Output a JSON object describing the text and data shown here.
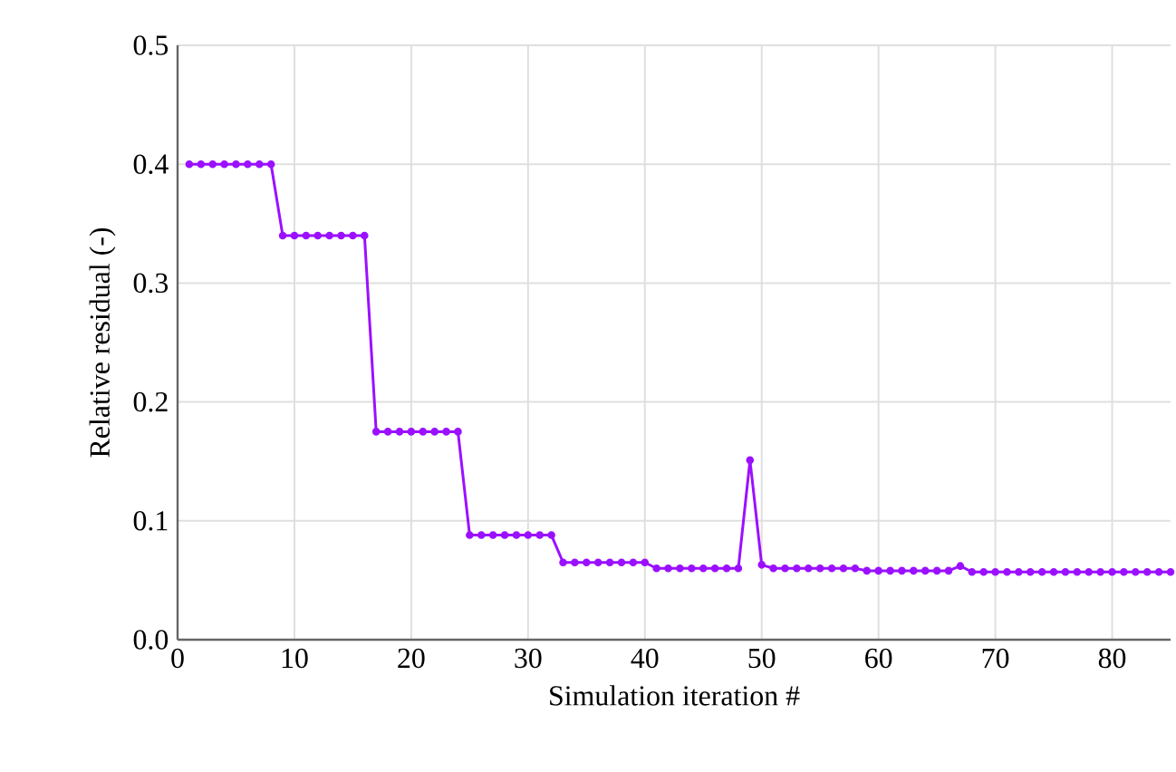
{
  "chart_data": {
    "type": "line",
    "xlabel": "Simulation iteration #",
    "ylabel": "Relative residual (-)",
    "x": [
      1,
      2,
      3,
      4,
      5,
      6,
      7,
      8,
      9,
      10,
      11,
      12,
      13,
      14,
      15,
      16,
      17,
      18,
      19,
      20,
      21,
      22,
      23,
      24,
      25,
      26,
      27,
      28,
      29,
      30,
      31,
      32,
      33,
      34,
      35,
      36,
      37,
      38,
      39,
      40,
      41,
      42,
      43,
      44,
      45,
      46,
      47,
      48,
      49,
      50,
      51,
      52,
      53,
      54,
      55,
      56,
      57,
      58,
      59,
      60,
      61,
      62,
      63,
      64,
      65,
      66,
      67,
      68,
      69,
      70,
      71,
      72,
      73,
      74,
      75,
      76,
      77,
      78,
      79,
      80,
      81,
      82,
      83,
      84,
      85
    ],
    "series": [
      {
        "color": "#9b10ff",
        "values": [
          0.4,
          0.4,
          0.4,
          0.4,
          0.4,
          0.4,
          0.4,
          0.4,
          0.34,
          0.34,
          0.34,
          0.34,
          0.34,
          0.34,
          0.34,
          0.34,
          0.175,
          0.175,
          0.175,
          0.175,
          0.175,
          0.175,
          0.175,
          0.175,
          0.088,
          0.088,
          0.088,
          0.088,
          0.088,
          0.088,
          0.088,
          0.088,
          0.065,
          0.065,
          0.065,
          0.065,
          0.065,
          0.065,
          0.065,
          0.065,
          0.06,
          0.06,
          0.06,
          0.06,
          0.06,
          0.06,
          0.06,
          0.06,
          0.151,
          0.063,
          0.06,
          0.06,
          0.06,
          0.06,
          0.06,
          0.06,
          0.06,
          0.06,
          0.058,
          0.058,
          0.058,
          0.058,
          0.058,
          0.058,
          0.058,
          0.058,
          0.062,
          0.057,
          0.057,
          0.057,
          0.057,
          0.057,
          0.057,
          0.057,
          0.057,
          0.057,
          0.057,
          0.057,
          0.057,
          0.057,
          0.057,
          0.057,
          0.057,
          0.057,
          0.057
        ]
      }
    ],
    "xlim": [
      0,
      85
    ],
    "ylim": [
      0,
      0.5
    ],
    "xticks": [
      0,
      10,
      20,
      30,
      40,
      50,
      60,
      70,
      80
    ],
    "yticks": [
      {
        "value": 0,
        "label": "0.0"
      },
      {
        "value": 0.1,
        "label": "0.1"
      },
      {
        "value": 0.2,
        "label": "0.2"
      },
      {
        "value": 0.3,
        "label": "0.3"
      },
      {
        "value": 0.4,
        "label": "0.4"
      },
      {
        "value": 0.5,
        "label": "0.5"
      }
    ],
    "grid": true,
    "marker": "circle",
    "line_style": "solid"
  }
}
